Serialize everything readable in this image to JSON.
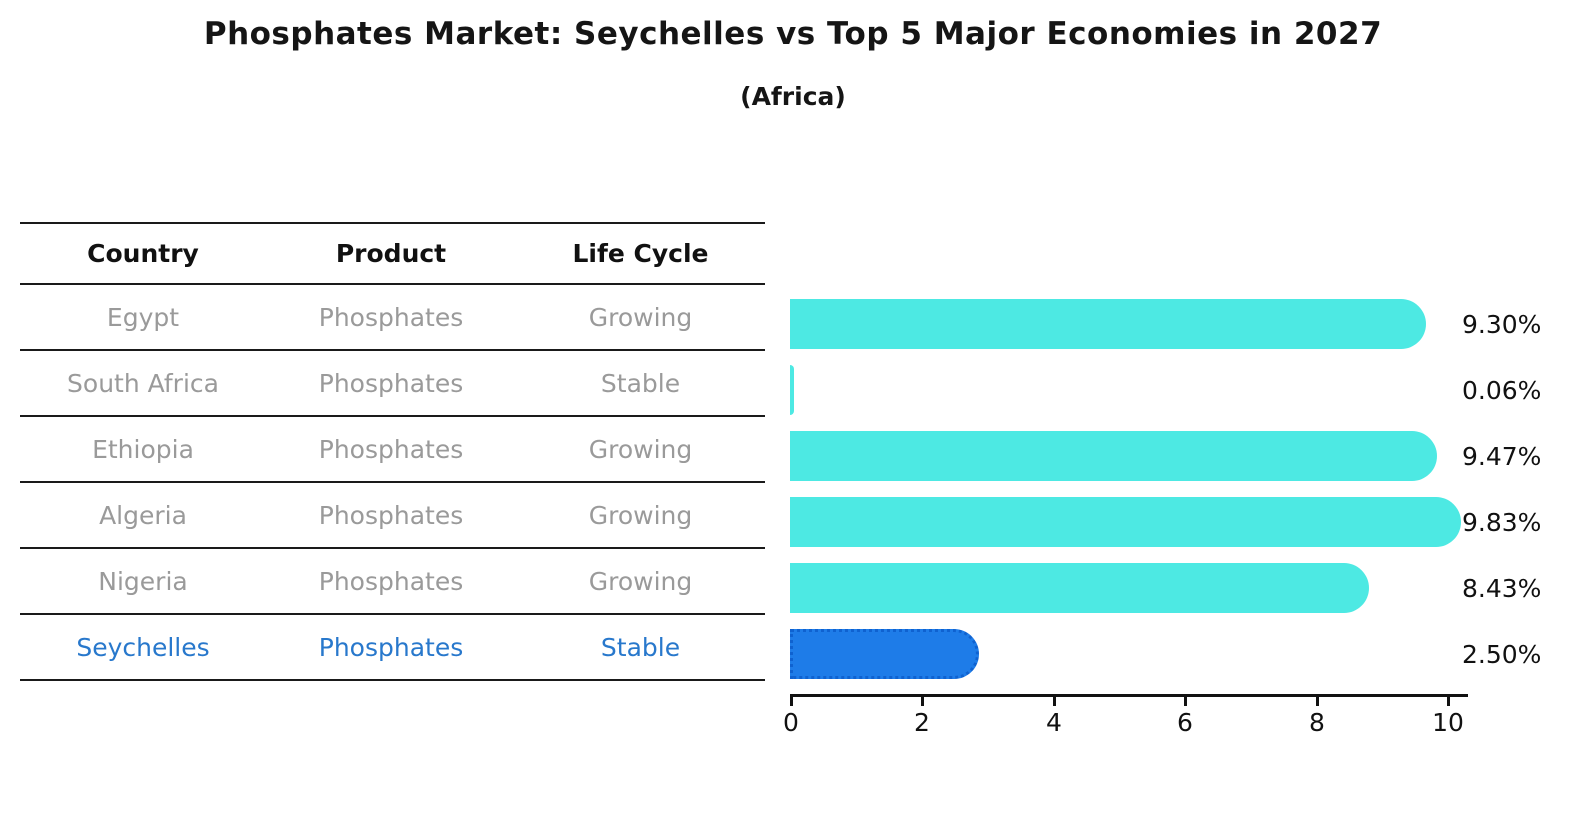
{
  "header": {
    "title": "Phosphates Market: Seychelles vs Top 5 Major Economies in 2027",
    "subtitle": "(Africa)"
  },
  "table": {
    "headers": [
      "Country",
      "Product",
      "Life Cycle"
    ],
    "rows": [
      {
        "country": "Egypt",
        "product": "Phosphates",
        "life_cycle": "Growing",
        "highlight": false
      },
      {
        "country": "South Africa",
        "product": "Phosphates",
        "life_cycle": "Stable",
        "highlight": false
      },
      {
        "country": "Ethiopia",
        "product": "Phosphates",
        "life_cycle": "Growing",
        "highlight": false
      },
      {
        "country": "Algeria",
        "product": "Phosphates",
        "life_cycle": "Growing",
        "highlight": false
      },
      {
        "country": "Nigeria",
        "product": "Phosphates",
        "life_cycle": "Growing",
        "highlight": false
      },
      {
        "country": "Seychelles",
        "product": "Phosphates",
        "life_cycle": "Stable",
        "highlight": true
      }
    ]
  },
  "chart_data": {
    "type": "bar",
    "orientation": "horizontal",
    "title": "Phosphates Market: Seychelles vs Top 5 Major Economies in 2027",
    "subtitle": "(Africa)",
    "categories": [
      "Egypt",
      "South Africa",
      "Ethiopia",
      "Algeria",
      "Nigeria",
      "Seychelles"
    ],
    "values": [
      9.3,
      0.06,
      9.47,
      9.83,
      8.43,
      2.5
    ],
    "value_labels": [
      "9.30%",
      "0.06%",
      "9.47%",
      "9.83%",
      "8.43%",
      "2.50%"
    ],
    "xlabel": "",
    "ylabel": "",
    "xlim": [
      0,
      10.3
    ],
    "xticks": [
      "0",
      "2",
      "4",
      "6",
      "8",
      "10"
    ],
    "grid": false,
    "legend": false,
    "bar_color": "#4DE9E3",
    "highlight_index": 5,
    "highlight_color": "#1E7CE8",
    "highlight_border_color": "#0f62d0",
    "highlight_text_color": "#2878CC"
  }
}
